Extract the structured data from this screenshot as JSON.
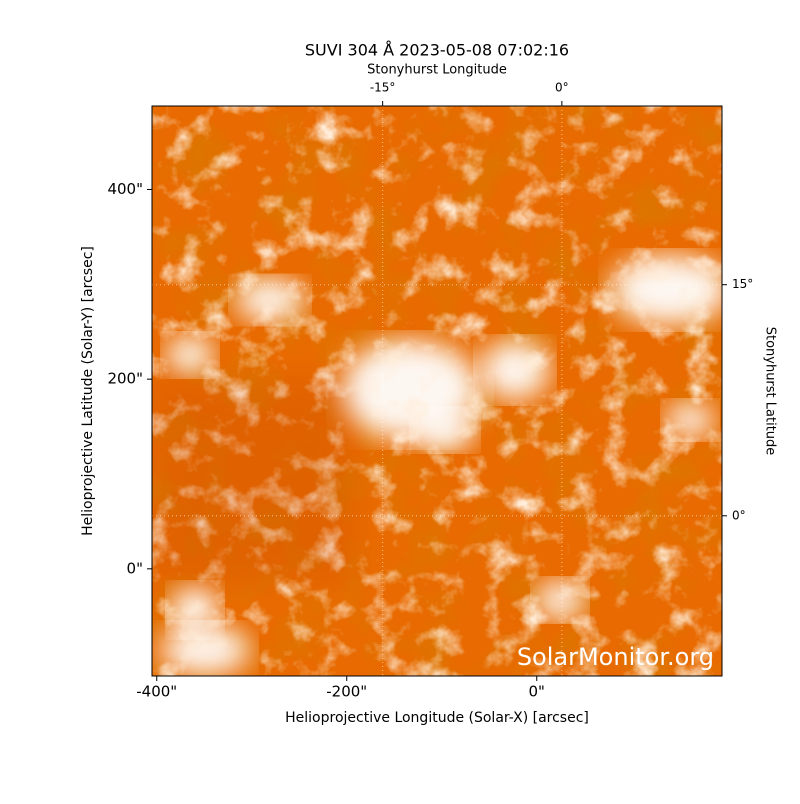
{
  "chart_data": {
    "type": "image",
    "title": "SUVI 304 Å 2023-05-08 07:02:16",
    "xlabel": "Helioprojective Longitude (Solar-X) [arcsec]",
    "ylabel": "Helioprojective Latitude (Solar-Y) [arcsec]",
    "x2label": "Stonyhurst Longitude",
    "y2label": "Stonyhurst Latitude",
    "xlim": [
      -405,
      195
    ],
    "ylim": [
      -113,
      488
    ],
    "xticks": [
      {
        "value": -400,
        "label": "-400\""
      },
      {
        "value": -200,
        "label": "-200\""
      },
      {
        "value": 0,
        "label": "0\""
      }
    ],
    "yticks": [
      {
        "value": 0,
        "label": "0\""
      },
      {
        "value": 200,
        "label": "200\""
      },
      {
        "value": 400,
        "label": "400\""
      }
    ],
    "x2lim": [
      -34.3,
      13.4
    ],
    "x2ticks": [
      {
        "value": -15,
        "label": "-15°"
      },
      {
        "value": 0,
        "label": "0°"
      }
    ],
    "y2lim": [
      -10.4,
      26.6
    ],
    "y2ticks": [
      {
        "value": 0,
        "label": "0°"
      },
      {
        "value": 15,
        "label": "15°"
      }
    ],
    "grid": true,
    "colors": [
      "#b83000",
      "#e86a00",
      "#ffffff"
    ],
    "watermark": "SolarMonitor.org"
  }
}
